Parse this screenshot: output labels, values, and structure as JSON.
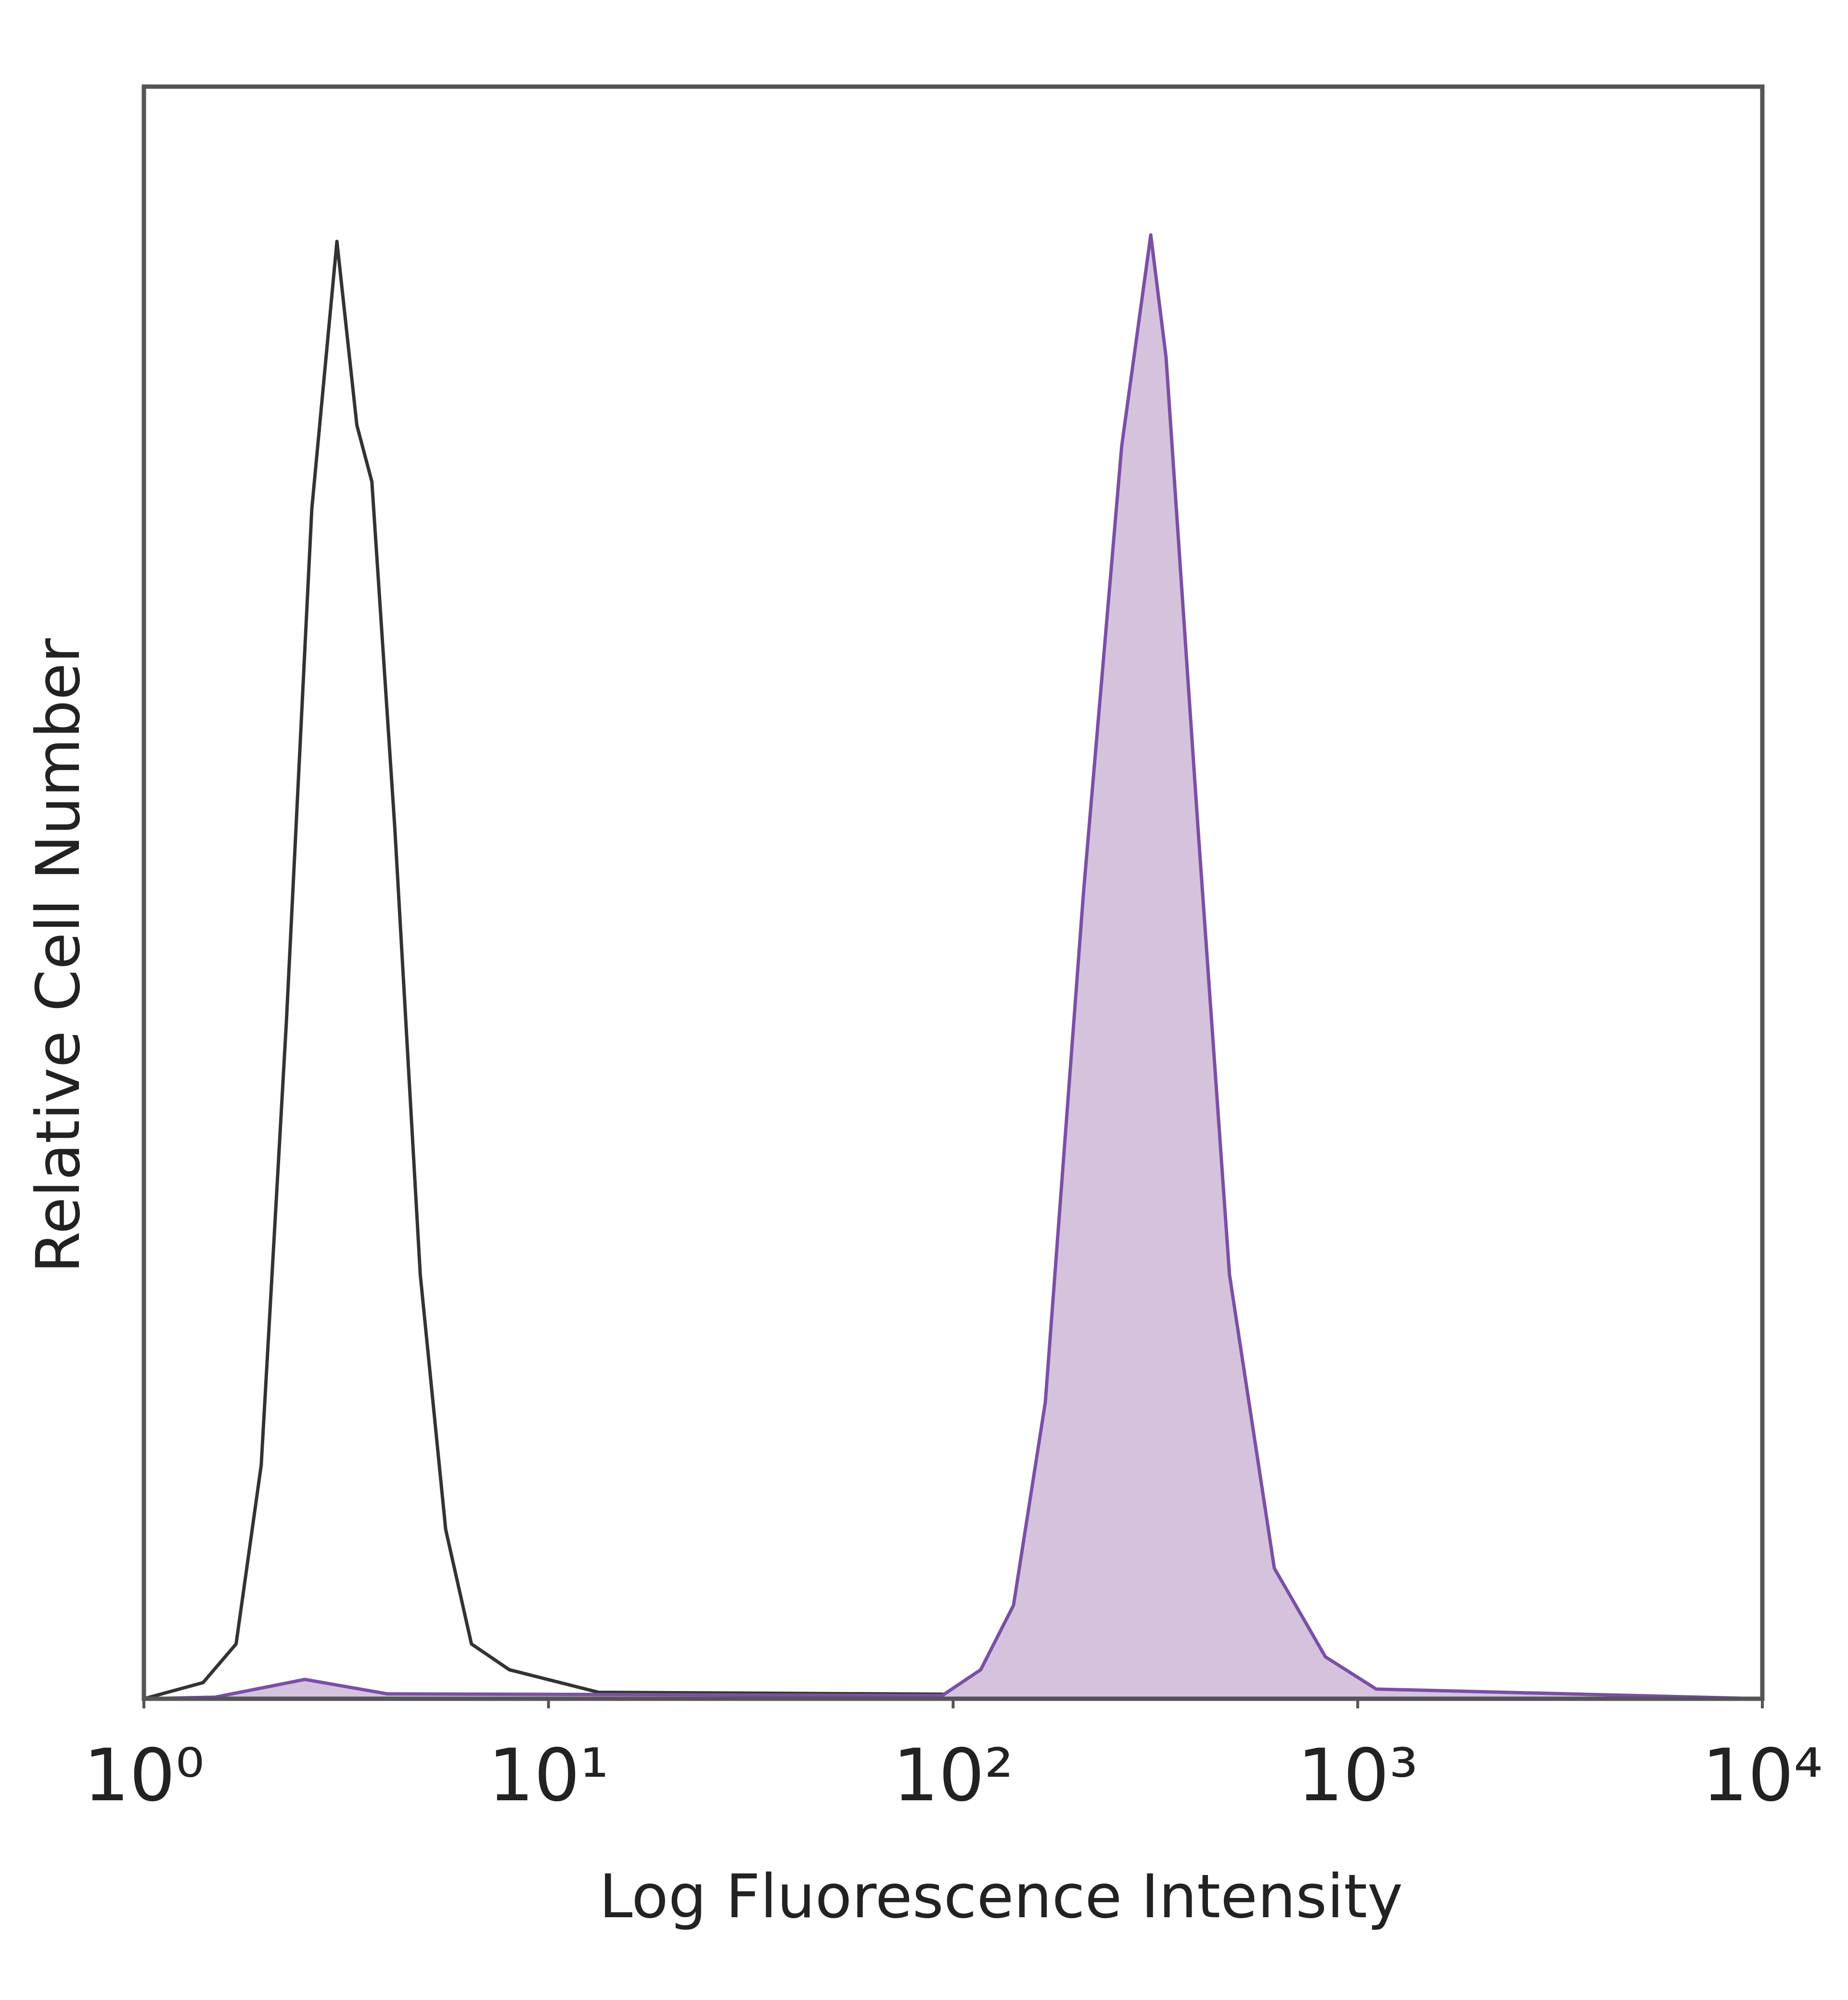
{
  "chart_data": {
    "type": "histogram-line",
    "x_label": "Log Fluorescence Intensity",
    "y_label": "Relative Cell Number",
    "xscale": "log",
    "xlim": [
      1,
      10000
    ],
    "ylim": [
      0,
      100
    ],
    "xticks": [
      {
        "value": 1,
        "label": "10⁰"
      },
      {
        "value": 10,
        "label": "10¹"
      },
      {
        "value": 100,
        "label": "10²"
      },
      {
        "value": 1000,
        "label": "10³"
      },
      {
        "value": 10000,
        "label": "10⁴"
      }
    ],
    "series": [
      {
        "color": "#333333",
        "filled": false,
        "x": [
          1,
          1.4,
          1.69,
          1.95,
          2.25,
          2.6,
          3.0,
          3.36,
          3.66,
          4.17,
          4.82,
          5.57,
          6.45,
          8.0,
          13.3,
          10000
        ],
        "values": [
          0,
          1,
          3.4,
          14.5,
          42,
          73.8,
          90.4,
          79,
          75.5,
          54,
          26.3,
          10.5,
          3.4,
          1.8,
          0.4,
          0
        ]
      },
      {
        "color": "#7b4fa6",
        "fill": "#d5c3de",
        "filled": true,
        "x": [
          1,
          1.5,
          2.5,
          4,
          94,
          117,
          141,
          169,
          210,
          261,
          308,
          336,
          403,
          482,
          622,
          832,
          1111,
          10000
        ],
        "values": [
          0,
          0.1,
          1.2,
          0.3,
          0.2,
          1.8,
          5.8,
          18.4,
          50,
          77.7,
          90.8,
          83.2,
          54,
          26.3,
          8.1,
          2.6,
          0.6,
          0
        ]
      }
    ]
  }
}
